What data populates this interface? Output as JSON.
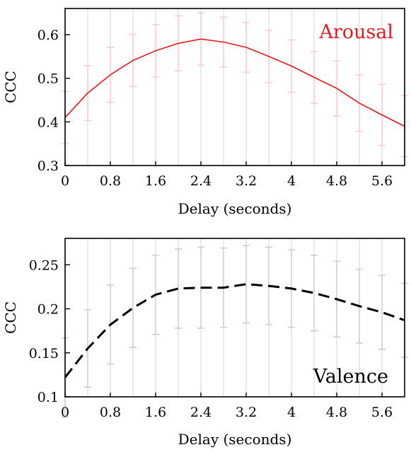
{
  "chart_data": [
    {
      "type": "line",
      "title": "Arousal",
      "title_color": "#e8191f",
      "title_position": "top-right",
      "xlabel": "Delay (seconds)",
      "ylabel": "CCC",
      "xlim": [
        0,
        6.0
      ],
      "ylim": [
        0.3,
        0.66
      ],
      "x_ticks": [
        0,
        0.8,
        1.6,
        2.4,
        3.2,
        4,
        4.8,
        5.6
      ],
      "x_tick_labels": [
        "0",
        "0.8",
        "1.6",
        "2.4",
        "3.2",
        "4",
        "4.8",
        "5.6"
      ],
      "y_ticks": [
        0.3,
        0.4,
        0.5,
        0.6
      ],
      "y_tick_labels": [
        "0.3",
        "0.4",
        "0.5",
        "0.6"
      ],
      "grid": "vertical",
      "line_color": "#e8191f",
      "line_style": "solid",
      "errorbar_color": "#f7c6c8",
      "series": [
        {
          "x": [
            0,
            0.4,
            0.8,
            1.2,
            1.6,
            2.0,
            2.4,
            2.8,
            3.2,
            3.6,
            4.0,
            4.4,
            4.8,
            5.2,
            5.6,
            6.0
          ],
          "y": [
            0.41,
            0.466,
            0.508,
            0.541,
            0.563,
            0.58,
            0.59,
            0.583,
            0.571,
            0.55,
            0.528,
            0.502,
            0.477,
            0.443,
            0.416,
            0.39
          ],
          "y_err": [
            0.06,
            0.063,
            0.063,
            0.06,
            0.06,
            0.063,
            0.06,
            0.057,
            0.057,
            0.06,
            0.06,
            0.06,
            0.063,
            0.065,
            0.07,
            0.07
          ]
        }
      ]
    },
    {
      "type": "line",
      "title": "Valence",
      "title_color": "#000000",
      "title_position": "bottom-right",
      "xlabel": "Delay (seconds)",
      "ylabel": "CCC",
      "xlim": [
        0,
        6.0
      ],
      "ylim": [
        0.1,
        0.28
      ],
      "x_ticks": [
        0,
        0.8,
        1.6,
        2.4,
        3.2,
        4,
        4.8,
        5.6
      ],
      "x_tick_labels": [
        "0",
        "0.8",
        "1.6",
        "2.4",
        "3.2",
        "4",
        "4.8",
        "5.6"
      ],
      "y_ticks": [
        0.1,
        0.15,
        0.2,
        0.25
      ],
      "y_tick_labels": [
        "0.1",
        "0.15",
        "0.2",
        "0.25"
      ],
      "grid": "vertical",
      "line_color": "#000000",
      "line_style": "dashed",
      "errorbar_color": "#c8c8c8",
      "series": [
        {
          "x": [
            0,
            0.4,
            0.8,
            1.2,
            1.6,
            2.0,
            2.4,
            2.8,
            3.2,
            3.6,
            4.0,
            4.4,
            4.8,
            5.2,
            5.6,
            6.0
          ],
          "y": [
            0.122,
            0.155,
            0.182,
            0.201,
            0.216,
            0.223,
            0.224,
            0.224,
            0.228,
            0.226,
            0.223,
            0.218,
            0.211,
            0.203,
            0.196,
            0.187
          ],
          "y_err": [
            0.045,
            0.044,
            0.045,
            0.045,
            0.045,
            0.045,
            0.046,
            0.045,
            0.044,
            0.044,
            0.044,
            0.043,
            0.043,
            0.042,
            0.042,
            0.042
          ]
        }
      ]
    }
  ]
}
